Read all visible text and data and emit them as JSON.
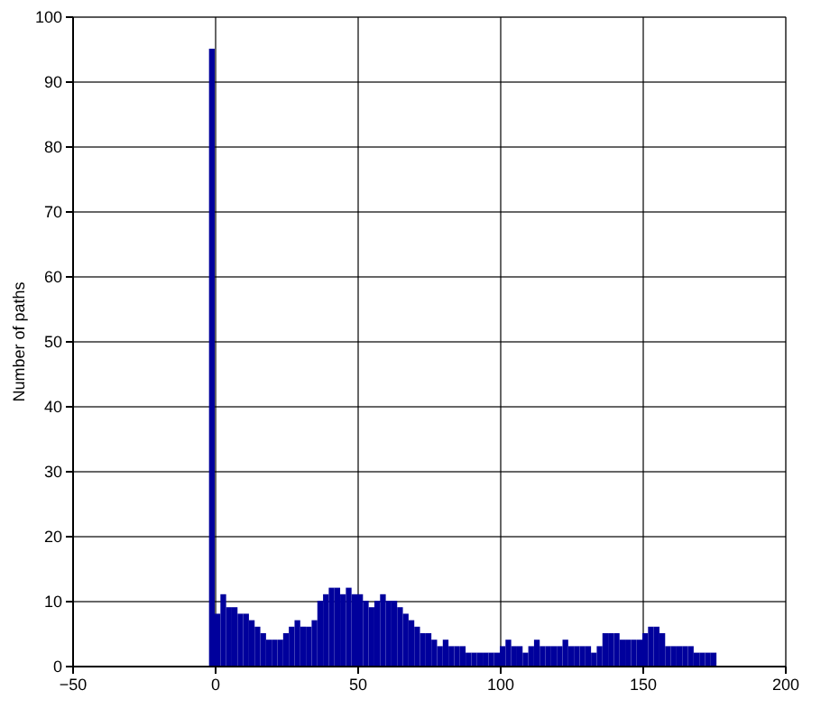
{
  "chart_data": {
    "type": "histogram",
    "ylabel": "Number of paths",
    "color": "#00009c",
    "bins": [
      -2,
      0,
      2,
      4,
      6,
      8,
      10,
      12,
      14,
      16,
      18,
      20,
      22,
      24,
      26,
      28,
      30,
      32,
      34,
      36,
      38,
      40,
      42,
      44,
      46,
      48,
      50,
      52,
      54,
      56,
      58,
      60,
      62,
      64,
      66,
      68,
      70,
      72,
      74,
      76,
      78,
      80,
      82,
      84,
      86,
      88,
      90,
      92,
      94,
      96,
      98,
      100,
      102,
      104,
      106,
      108,
      110,
      112,
      114,
      116,
      118,
      120,
      122,
      124,
      126,
      128,
      130,
      132,
      134,
      136,
      138,
      140,
      142,
      144,
      146,
      148,
      150,
      152,
      154,
      156,
      158,
      160,
      162,
      164,
      166,
      168,
      170,
      172,
      174,
      176
    ],
    "values": [
      95,
      8,
      11,
      9,
      9,
      8,
      8,
      7,
      6,
      5,
      4,
      4,
      4,
      5,
      6,
      7,
      6,
      6,
      7,
      10,
      11,
      12,
      12,
      11,
      12,
      11,
      11,
      10,
      9,
      10,
      11,
      10,
      10,
      9,
      8,
      7,
      6,
      5,
      5,
      4,
      3,
      4,
      3,
      3,
      3,
      2,
      2,
      2,
      2,
      2,
      2,
      3,
      4,
      3,
      3,
      2,
      3,
      4,
      3,
      3,
      3,
      3,
      4,
      3,
      3,
      3,
      3,
      2,
      3,
      5,
      5,
      5,
      4,
      4,
      4,
      4,
      5,
      6,
      6,
      5,
      3,
      3,
      3,
      3,
      3,
      2,
      2,
      2,
      2
    ],
    "xlim": [
      -50,
      200
    ],
    "xticks": [
      -50,
      0,
      50,
      100,
      150,
      200
    ],
    "ylim": [
      0,
      100
    ],
    "yticks": [
      0,
      10,
      20,
      30,
      40,
      50,
      60,
      70,
      80,
      90,
      100
    ],
    "grid": true
  }
}
